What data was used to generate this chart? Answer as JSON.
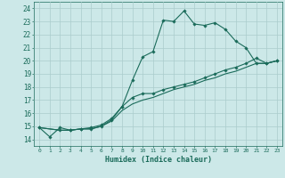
{
  "title": "",
  "xlabel": "Humidex (Indice chaleur)",
  "bg_color": "#cce8e8",
  "grid_color": "#aacccc",
  "line_color": "#1a6b5a",
  "xlim": [
    -0.5,
    23.5
  ],
  "ylim": [
    13.5,
    24.5
  ],
  "xticks": [
    0,
    1,
    2,
    3,
    4,
    5,
    6,
    7,
    8,
    9,
    10,
    11,
    12,
    13,
    14,
    15,
    16,
    17,
    18,
    19,
    20,
    21,
    22,
    23
  ],
  "yticks": [
    14,
    15,
    16,
    17,
    18,
    19,
    20,
    21,
    22,
    23,
    24
  ],
  "line1_x": [
    0,
    1,
    2,
    3,
    4,
    5,
    6,
    7,
    8,
    9,
    10,
    11,
    12,
    13,
    14,
    15,
    16,
    17,
    18,
    19,
    20,
    21,
    22,
    23
  ],
  "line1_y": [
    14.9,
    14.2,
    14.9,
    14.7,
    14.8,
    14.9,
    15.1,
    15.6,
    16.5,
    18.5,
    20.3,
    20.7,
    23.1,
    23.0,
    23.8,
    22.8,
    22.7,
    22.9,
    22.4,
    21.5,
    21.0,
    19.8,
    19.8,
    20.0
  ],
  "line2_x": [
    0,
    2,
    3,
    4,
    5,
    6,
    7,
    8,
    9,
    10,
    11,
    12,
    13,
    14,
    15,
    16,
    17,
    18,
    19,
    20,
    21,
    22,
    23
  ],
  "line2_y": [
    14.9,
    14.7,
    14.7,
    14.8,
    14.8,
    15.0,
    15.5,
    16.5,
    17.2,
    17.5,
    17.5,
    17.8,
    18.0,
    18.2,
    18.4,
    18.7,
    19.0,
    19.3,
    19.5,
    19.8,
    20.2,
    19.8,
    20.0
  ],
  "line3_x": [
    0,
    2,
    3,
    4,
    5,
    6,
    7,
    8,
    9,
    10,
    11,
    12,
    13,
    14,
    15,
    16,
    17,
    18,
    19,
    20,
    21,
    22,
    23
  ],
  "line3_y": [
    14.9,
    14.7,
    14.7,
    14.8,
    14.8,
    15.0,
    15.4,
    16.2,
    16.7,
    17.0,
    17.2,
    17.5,
    17.8,
    18.0,
    18.2,
    18.5,
    18.7,
    19.0,
    19.2,
    19.5,
    19.8,
    19.8,
    20.0
  ]
}
